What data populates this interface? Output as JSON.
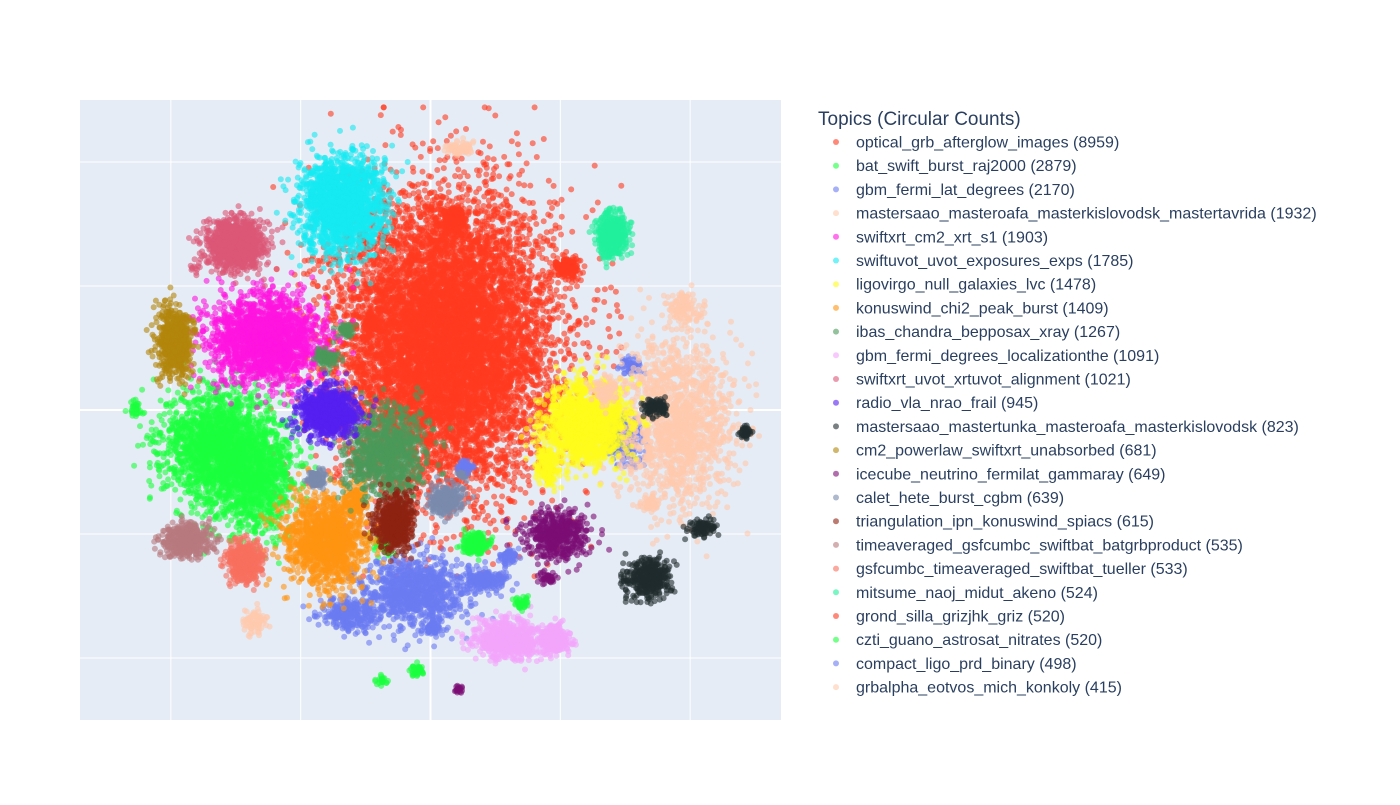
{
  "chart_data": {
    "type": "scatter",
    "title": "",
    "xlabel": "",
    "ylabel": "",
    "grid": true,
    "x_tick_labels_visible": false,
    "y_tick_labels_visible": false,
    "xlim": [
      -2.7,
      2.7
    ],
    "ylim": [
      -2.5,
      2.5
    ],
    "legend": {
      "title": "Topics (Circular Counts)",
      "placement": "right"
    },
    "series": [
      {
        "name": "optical_grb_afterglow_images (8959)",
        "color": "#ff3b1f",
        "clusters": [
          [
            0.12,
            0.55,
            0.75,
            1.05,
            9000
          ]
        ]
      },
      {
        "name": "bat_swift_burst_raj2000 (2879)",
        "color": "#1aff3d",
        "clusters": [
          [
            -1.63,
            -0.3,
            0.38,
            0.42,
            1800
          ],
          [
            -1.35,
            -0.55,
            0.28,
            0.4,
            900
          ],
          [
            -0.35,
            -1.08,
            0.08,
            0.08,
            60
          ],
          [
            -0.38,
            -2.18,
            0.05,
            0.05,
            20
          ],
          [
            -2.27,
            0.02,
            0.06,
            0.07,
            30
          ]
        ]
      },
      {
        "name": "gbm_fermi_lat_degrees (2170)",
        "color": "#6b7bf2",
        "clusters": [
          [
            -0.12,
            -1.48,
            0.35,
            0.25,
            1000
          ],
          [
            -0.62,
            -1.65,
            0.2,
            0.12,
            300
          ],
          [
            0.42,
            -1.37,
            0.17,
            0.08,
            200
          ],
          [
            1.5,
            -0.25,
            0.12,
            0.18,
            250
          ],
          [
            1.55,
            0.35,
            0.07,
            0.07,
            60
          ]
        ]
      },
      {
        "name": "mastersaao_masteroafa_masterkislovodsk_mastertavrida (1932)",
        "color": "#ffc9ad",
        "clusters": [
          [
            1.9,
            -0.1,
            0.4,
            0.6,
            1500
          ],
          [
            0.22,
            2.11,
            0.1,
            0.05,
            80
          ],
          [
            -1.35,
            -1.7,
            0.08,
            0.09,
            80
          ]
        ]
      },
      {
        "name": "swiftxrt_cm2_xrt_s1 (1903)",
        "color": "#ff14e0",
        "clusters": [
          [
            -1.28,
            0.57,
            0.38,
            0.32,
            1900
          ]
        ]
      },
      {
        "name": "swiftuvot_uvot_exposures_exps (1785)",
        "color": "#16e9f2",
        "clusters": [
          [
            -0.68,
            1.65,
            0.28,
            0.35,
            1800
          ]
        ]
      },
      {
        "name": "ligovirgo_null_galaxies_lvc (1478)",
        "color": "#fffb1a",
        "clusters": [
          [
            1.2,
            -0.1,
            0.28,
            0.3,
            1400
          ],
          [
            0.9,
            -0.45,
            0.08,
            0.18,
            150
          ]
        ]
      },
      {
        "name": "konuswind_chi2_peak_burst (1409)",
        "color": "#ff9412",
        "clusters": [
          [
            -0.8,
            -1.05,
            0.28,
            0.32,
            1300
          ],
          [
            -0.58,
            -0.72,
            0.08,
            0.12,
            120
          ]
        ]
      },
      {
        "name": "ibas_chandra_bepposax_xray (1267)",
        "color": "#4b9a5a",
        "clusters": [
          [
            -0.35,
            -0.35,
            0.28,
            0.32,
            900
          ],
          [
            -0.8,
            0.42,
            0.08,
            0.07,
            90
          ],
          [
            -0.65,
            0.65,
            0.06,
            0.06,
            50
          ]
        ]
      },
      {
        "name": "gbm_fermi_degrees_localizationthe (1091)",
        "color": "#f4a5fb",
        "clusters": [
          [
            0.6,
            -1.85,
            0.22,
            0.15,
            700
          ],
          [
            0.95,
            -1.85,
            0.1,
            0.1,
            300
          ]
        ]
      },
      {
        "name": "swiftxrt_uvot_xrtuvot_alignment (1021)",
        "color": "#dc5677",
        "clusters": [
          [
            -1.5,
            1.32,
            0.2,
            0.18,
            1000
          ],
          [
            -1.82,
            1.13,
            0.03,
            0.04,
            10
          ]
        ]
      },
      {
        "name": "radio_vla_nrao_frail (945)",
        "color": "#5520f0",
        "clusters": [
          [
            -0.78,
            -0.02,
            0.2,
            0.18,
            900
          ]
        ]
      },
      {
        "name": "mastersaao_mastertunka_masteroafa_masterkislovodsk (823)",
        "color": "#1f2b2d",
        "clusters": [
          [
            1.68,
            -1.35,
            0.16,
            0.14,
            400
          ],
          [
            2.1,
            -0.95,
            0.1,
            0.07,
            100
          ],
          [
            1.73,
            0.02,
            0.08,
            0.07,
            120
          ],
          [
            2.43,
            -0.18,
            0.04,
            0.05,
            40
          ]
        ]
      },
      {
        "name": "cm2_powerlaw_swiftxrt_unabsorbed (681)",
        "color": "#b3850c",
        "clusters": [
          [
            -1.97,
            0.55,
            0.12,
            0.25,
            650
          ]
        ]
      },
      {
        "name": "icecube_neutrino_fermilat_gammaray (649)",
        "color": "#7b0d75",
        "clusters": [
          [
            0.98,
            -1.0,
            0.22,
            0.18,
            500
          ],
          [
            0.9,
            -1.35,
            0.06,
            0.05,
            40
          ],
          [
            0.22,
            -2.25,
            0.04,
            0.04,
            20
          ]
        ]
      },
      {
        "name": "calet_hete_burst_cgbm (639)",
        "color": "#7a8aad",
        "clusters": [
          [
            0.12,
            -0.72,
            0.12,
            0.1,
            300
          ],
          [
            -0.88,
            -0.55,
            0.07,
            0.07,
            80
          ],
          [
            0.25,
            -0.52,
            0.05,
            0.05,
            40
          ]
        ]
      },
      {
        "name": "triangulation_ipn_konuswind_spiacs (615)",
        "color": "#8d2312",
        "clusters": [
          [
            -0.28,
            -0.92,
            0.13,
            0.2,
            600
          ]
        ]
      },
      {
        "name": "timeaveraged_gsfcumbc_swiftbat_batgrbproduct (535)",
        "color": "#b77a7e",
        "clusters": [
          [
            -1.87,
            -1.05,
            0.16,
            0.12,
            520
          ]
        ]
      },
      {
        "name": "gsfcumbc_timeaveraged_swiftbat_tueller (533)",
        "color": "#f8705f",
        "clusters": [
          [
            -1.43,
            -1.22,
            0.12,
            0.14,
            520
          ]
        ]
      },
      {
        "name": "mitsume_naoj_midut_akeno (524)",
        "color": "#22f09c",
        "clusters": [
          [
            1.4,
            1.42,
            0.1,
            0.15,
            520
          ]
        ]
      },
      {
        "name": "grond_silla_grizjhk_griz (520)",
        "color": "#ff3b1f",
        "clusters": [
          [
            1.05,
            1.15,
            0.08,
            0.07,
            200
          ],
          [
            -0.45,
            0.7,
            0.06,
            0.06,
            100
          ],
          [
            0.18,
            1.55,
            0.08,
            0.08,
            220
          ]
        ]
      },
      {
        "name": "czti_guano_astrosat_nitrates (520)",
        "color": "#1aff3d",
        "clusters": [
          [
            0.35,
            -1.08,
            0.08,
            0.08,
            250
          ],
          [
            -0.1,
            -2.1,
            0.05,
            0.06,
            40
          ],
          [
            0.7,
            -1.55,
            0.05,
            0.05,
            40
          ]
        ]
      },
      {
        "name": "compact_ligo_prd_binary (498)",
        "color": "#6b7bf2",
        "clusters": [
          [
            0.6,
            -1.18,
            0.06,
            0.06,
            60
          ],
          [
            0.02,
            -1.75,
            0.08,
            0.05,
            60
          ],
          [
            0.27,
            -0.45,
            0.05,
            0.05,
            40
          ]
        ]
      },
      {
        "name": "grbalpha_eotvos_mich_konkoly (415)",
        "color": "#ffc9ad",
        "clusters": [
          [
            1.35,
            0.15,
            0.1,
            0.1,
            90
          ],
          [
            1.95,
            0.82,
            0.12,
            0.12,
            130
          ],
          [
            1.7,
            -0.75,
            0.06,
            0.05,
            40
          ]
        ]
      }
    ]
  }
}
